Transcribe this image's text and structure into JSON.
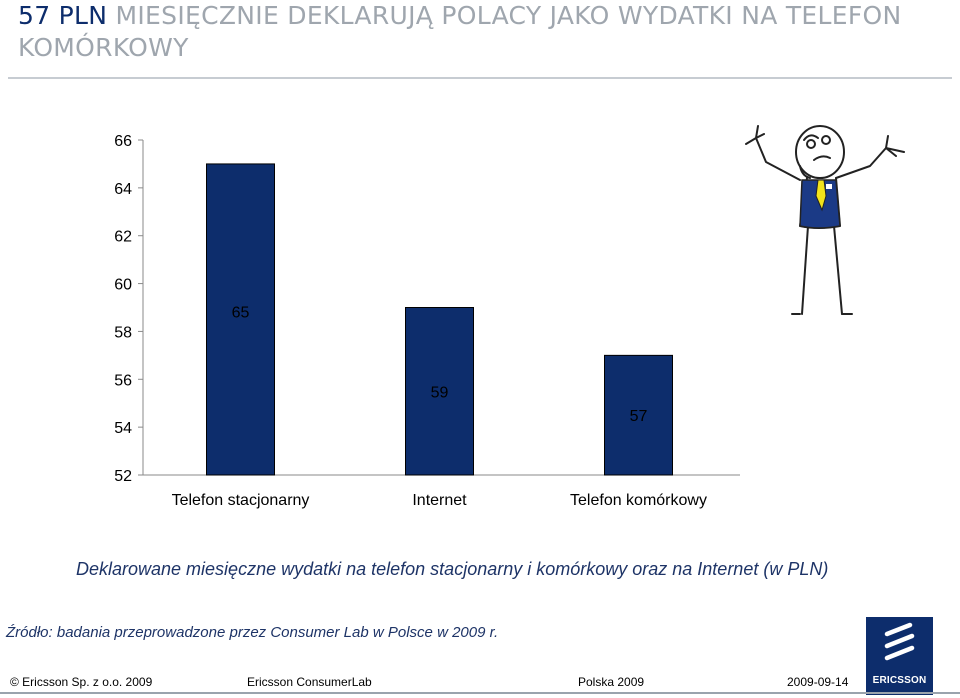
{
  "header": {
    "title_highlight": "57 PLN",
    "title_rest": " MIESIĘCZNIE DEKLARUJĄ POLACY JAKO WYDATKI NA TELEFON KOMÓRKOWY"
  },
  "chart_data": {
    "type": "bar",
    "categories": [
      "Telefon stacjonarny",
      "Internet",
      "Telefon komórkowy"
    ],
    "values": [
      65,
      59,
      57
    ],
    "title": "",
    "xlabel": "",
    "ylabel": "",
    "ylim": [
      52,
      66
    ],
    "yticks": [
      52,
      54,
      56,
      58,
      60,
      62,
      64,
      66
    ],
    "bar_color": "#0d2d6c",
    "grid": false
  },
  "caption": "Deklarowane miesięczne wydatki na telefon stacjonarny i komórkowy oraz na Internet (w PLN)",
  "source": "Źródło: badania przeprowadzone przez Consumer Lab w Polsce w 2009 r.",
  "footer": {
    "company": "© Ericsson Sp. z o.o. 2009",
    "lab": "Ericsson ConsumerLab",
    "region": "Polska 2009",
    "date": "2009-09-14"
  },
  "logo": {
    "text": "ERICSSON",
    "icon": "ericsson-logo-icon",
    "color": "#0d2d6c"
  },
  "illustration": {
    "icon": "stick-figure-shrug-icon",
    "accent_color": "#f2e31b"
  }
}
